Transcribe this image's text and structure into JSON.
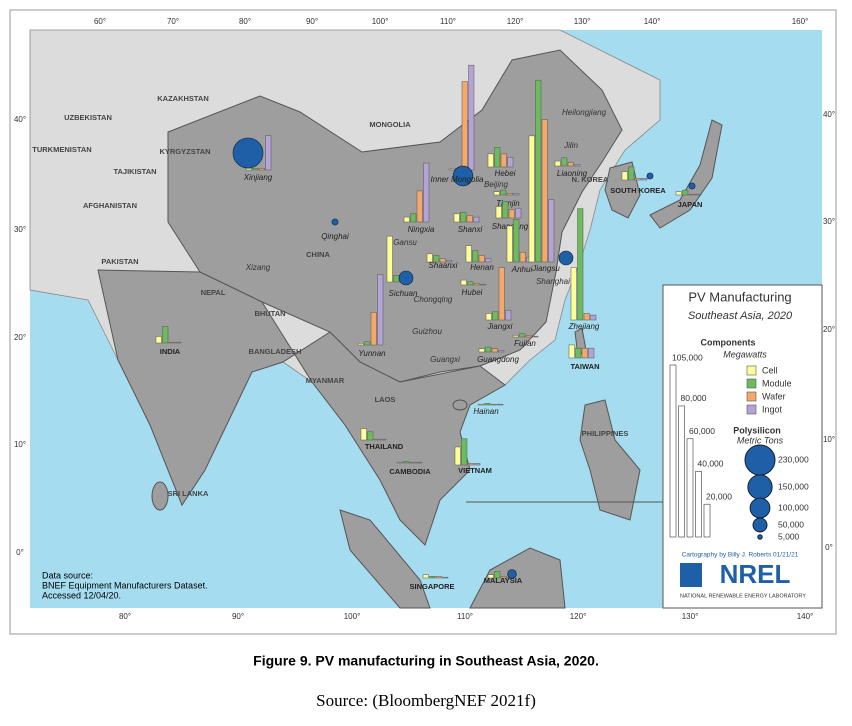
{
  "map": {
    "title": "PV Manufacturing",
    "subtitle": "Southeast Asia, 2020",
    "lon_labels_top": [
      "60°",
      "70°",
      "80°",
      "90°",
      "100°",
      "110°",
      "120°",
      "130°",
      "140°",
      "160°"
    ],
    "lon_labels_bottom": [
      "80°",
      "90°",
      "100°",
      "110°",
      "120°",
      "130°",
      "140°"
    ],
    "lat_labels_left": [
      "40°",
      "30°",
      "20°",
      "10°",
      "0°"
    ],
    "lat_labels_right": [
      "40°",
      "30°",
      "20°",
      "10°",
      "0°"
    ],
    "place_labels": [
      "KAZAKHSTAN",
      "UZBEKISTAN",
      "KYRGYZSTAN",
      "TAJIKISTAN",
      "TURKMENISTAN",
      "AFGHANISTAN",
      "PAKISTAN",
      "NEPAL",
      "BHUTAN",
      "BANGLADESH",
      "MYANMAR",
      "LAOS",
      "SRI LANKA",
      "PHILIPPINES",
      "MONGOLIA",
      "CHINA",
      "Xizang",
      "Gansu",
      "Chongqing",
      "Guizhou",
      "Guangxi",
      "Beijing",
      "Jilin",
      "Heilongjiang",
      "Shanghai",
      "N. KOREA"
    ],
    "data_source": [
      "Data source:",
      "BNEF Equipment Manufacturers Dataset.",
      "Accessed 12/04/20."
    ],
    "credit": "Cartography by Billy J. Roberts 01/21/21",
    "logo": "NREL",
    "lab": "NATIONAL RENEWABLE ENERGY LABORATORY"
  },
  "legend": {
    "components_title": "Components",
    "components_unit": "Megawatts",
    "components": [
      {
        "name": "Cell",
        "color": "#ffff99"
      },
      {
        "name": "Module",
        "color": "#6dbb5d"
      },
      {
        "name": "Wafer",
        "color": "#f4a86a"
      },
      {
        "name": "Ingot",
        "color": "#b4a3d6"
      }
    ],
    "scale": [
      {
        "value": 105000,
        "label": "105,000"
      },
      {
        "value": 80000,
        "label": "80,000"
      },
      {
        "value": 60000,
        "label": "60,000"
      },
      {
        "value": 40000,
        "label": "40,000"
      },
      {
        "value": 20000,
        "label": "20,000"
      }
    ],
    "polysilicon_title": "Polysilicon",
    "polysilicon_unit": "Metric Tons",
    "polysilicon_color": "#1f5fa8",
    "polysilicon_scale": [
      {
        "value": 230000,
        "label": "230,000"
      },
      {
        "value": 150000,
        "label": "150,000"
      },
      {
        "value": 100000,
        "label": "100,000"
      },
      {
        "value": 50000,
        "label": "50,000"
      },
      {
        "value": 5000,
        "label": "5,000"
      }
    ]
  },
  "regions": [
    {
      "name": "Xinjiang",
      "components": [
        1000,
        1000,
        1000,
        21000
      ],
      "polysilicon": 230000
    },
    {
      "name": "Inner Mongolia",
      "components": [
        600,
        1000,
        54000,
        64000
      ],
      "polysilicon": 100000
    },
    {
      "name": "Hebei",
      "components": [
        8000,
        12000,
        8000,
        6000
      ],
      "polysilicon": null
    },
    {
      "name": "Liaoning",
      "components": [
        3000,
        5000,
        2000,
        1000
      ],
      "polysilicon": null
    },
    {
      "name": "Tianjin",
      "components": [
        2000,
        3000,
        1000,
        1000
      ],
      "polysilicon": null
    },
    {
      "name": "Shandong",
      "components": [
        7000,
        10000,
        5000,
        6000
      ],
      "polysilicon": null
    },
    {
      "name": "Shanxi",
      "components": [
        5000,
        6000,
        4000,
        3000
      ],
      "polysilicon": null
    },
    {
      "name": "Ningxia",
      "components": [
        3000,
        5000,
        19000,
        36000
      ],
      "polysilicon": null
    },
    {
      "name": "Shaanxi",
      "components": [
        5000,
        4000,
        2000,
        1000
      ],
      "polysilicon": null
    },
    {
      "name": "Henan",
      "components": [
        10000,
        7000,
        4000,
        2000
      ],
      "polysilicon": null
    },
    {
      "name": "Anhui",
      "components": [
        22000,
        26000,
        6000,
        3000
      ],
      "polysilicon": null
    },
    {
      "name": "Jiangsu",
      "components": [
        77000,
        111000,
        87000,
        38000
      ],
      "polysilicon": 50000
    },
    {
      "name": "Zhejiang",
      "components": [
        32000,
        68000,
        4000,
        3000
      ],
      "polysilicon": null
    },
    {
      "name": "Jiangxi",
      "components": [
        4000,
        5000,
        32000,
        6000
      ],
      "polysilicon": null
    },
    {
      "name": "Sichuan",
      "components": [
        28000,
        4000,
        2000,
        1000
      ],
      "polysilicon": 50000
    },
    {
      "name": "Yunnan",
      "components": [
        1000,
        2000,
        20000,
        43000
      ],
      "polysilicon": null
    },
    {
      "name": "Hubei",
      "components": [
        3000,
        2000,
        1000,
        500
      ],
      "polysilicon": null
    },
    {
      "name": "Guangdong",
      "components": [
        2000,
        3000,
        2000,
        1000
      ],
      "polysilicon": null
    },
    {
      "name": "Fujian",
      "components": [
        1000,
        2000,
        1000,
        500
      ],
      "polysilicon": null
    },
    {
      "name": "TAIWAN",
      "components": [
        8000,
        6000,
        6000,
        6000
      ],
      "polysilicon": null
    },
    {
      "name": "INDIA",
      "components": [
        4000,
        10000,
        500,
        500
      ],
      "polysilicon": null
    },
    {
      "name": "VIETNAM",
      "components": [
        11000,
        16000,
        1000,
        1000
      ],
      "polysilicon": null
    },
    {
      "name": "THAILAND",
      "components": [
        7000,
        5000,
        500,
        500
      ],
      "polysilicon": null
    },
    {
      "name": "MALAYSIA",
      "components": [
        2000,
        4000,
        1000,
        500
      ],
      "polysilicon": 20000
    },
    {
      "name": "SOUTH KOREA",
      "components": [
        5000,
        8000,
        1000,
        1000
      ],
      "polysilicon": 10000
    },
    {
      "name": "JAPAN",
      "components": [
        2000,
        3000,
        500,
        500
      ],
      "polysilicon": 10000
    },
    {
      "name": "Qinghai",
      "components": [
        null,
        null,
        null,
        null
      ],
      "polysilicon": 10000
    },
    {
      "name": "Hainan",
      "components": [
        500,
        1000,
        500,
        500
      ],
      "polysilicon": null
    },
    {
      "name": "SINGAPORE",
      "components": [
        2000,
        1000,
        1000,
        500
      ],
      "polysilicon": null
    },
    {
      "name": "CAMBODIA",
      "components": [
        500,
        1000,
        500,
        500
      ],
      "polysilicon": null
    }
  ],
  "caption": "Figure 9. PV manufacturing in Southeast Asia, 2020.",
  "source": "Source: (BloombergNEF 2021f)"
}
